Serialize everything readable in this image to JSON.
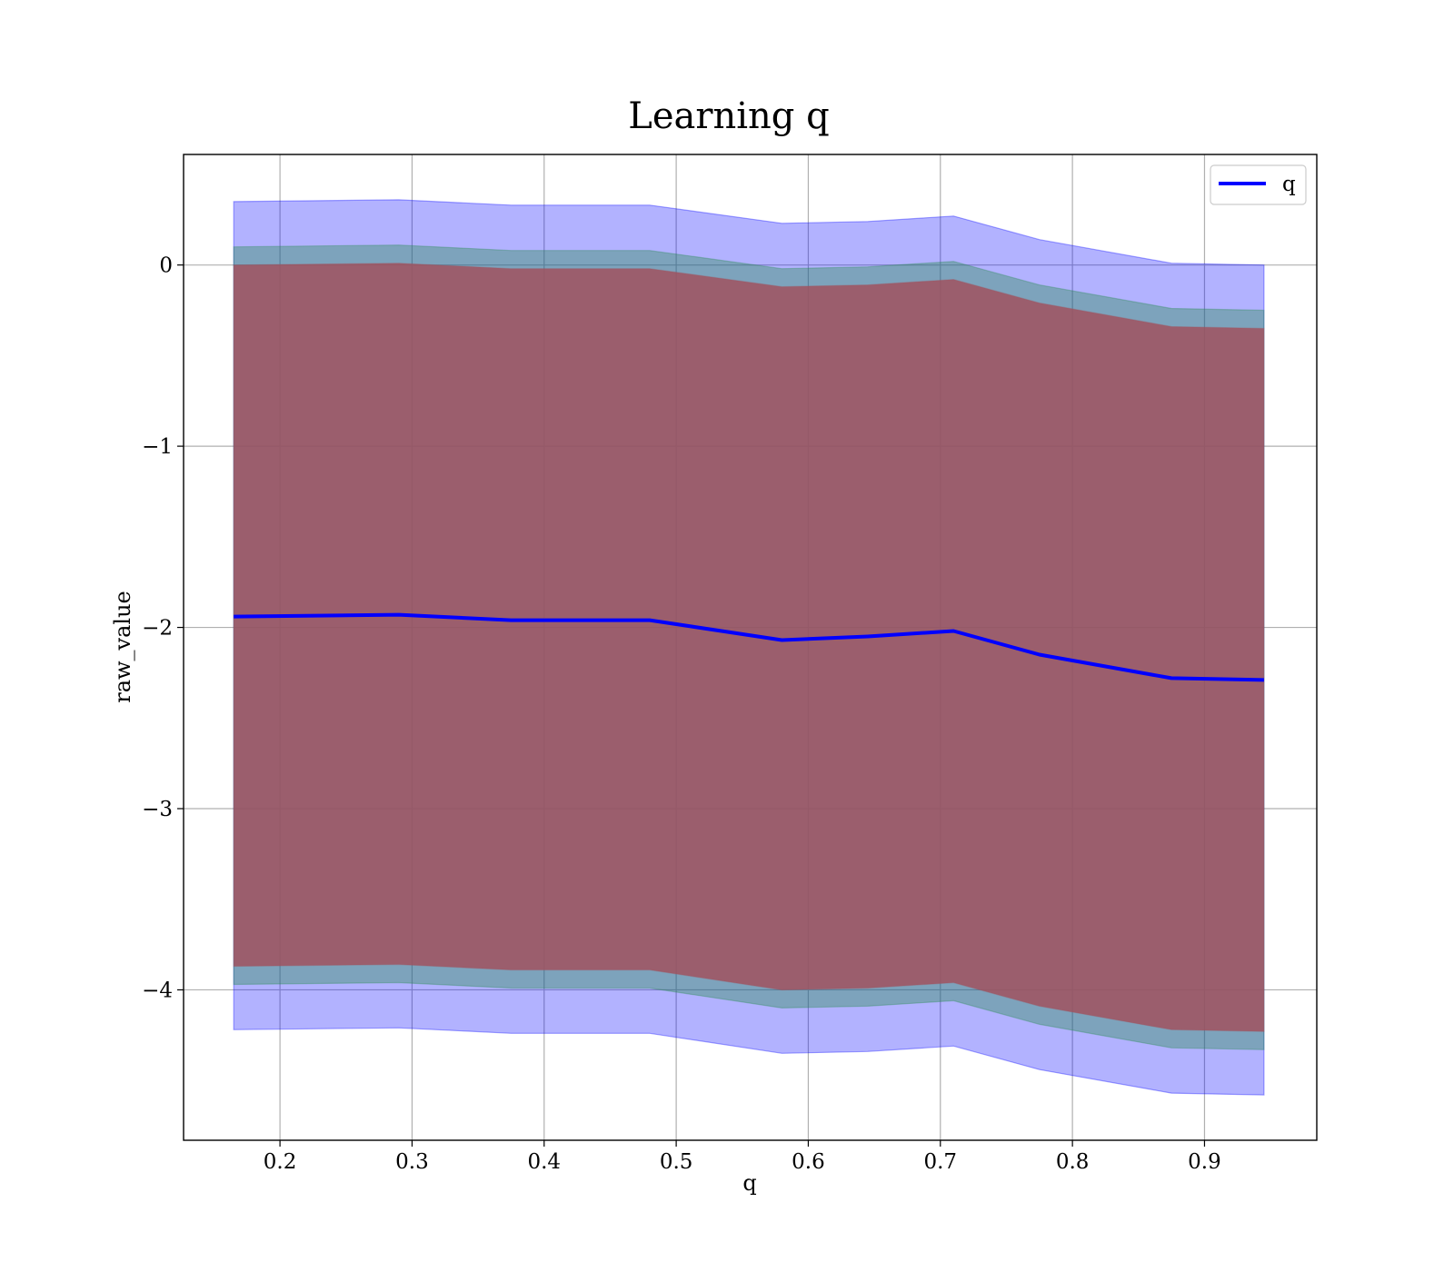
{
  "chart_data": {
    "type": "line",
    "title": "Learning q",
    "xlabel": "q",
    "ylabel": "raw_value",
    "xlim": [
      0.127,
      0.985
    ],
    "ylim": [
      -4.83,
      0.61
    ],
    "xticks": [
      0.2,
      0.3,
      0.4,
      0.5,
      0.6,
      0.7,
      0.8,
      0.9
    ],
    "xtick_labels": [
      "0.2",
      "0.3",
      "0.4",
      "0.5",
      "0.6",
      "0.7",
      "0.8",
      "0.9"
    ],
    "yticks": [
      0,
      -1,
      -2,
      -3,
      -4
    ],
    "ytick_labels": [
      "0",
      "−1",
      "−2",
      "−3",
      "−4"
    ],
    "grid": true,
    "legend_position": "top-right",
    "x": [
      0.165,
      0.29,
      0.375,
      0.48,
      0.58,
      0.645,
      0.71,
      0.775,
      0.875,
      0.945
    ],
    "series": [
      {
        "name": "q",
        "color": "#0000ff",
        "values": [
          -1.94,
          -1.93,
          -1.96,
          -1.96,
          -2.07,
          -2.05,
          -2.02,
          -2.15,
          -2.28,
          -2.29
        ]
      }
    ],
    "bands": [
      {
        "color": "#0000ff",
        "opacity": 0.3,
        "upper": [
          0.35,
          0.36,
          0.33,
          0.33,
          0.23,
          0.24,
          0.27,
          0.14,
          0.01,
          0.0
        ],
        "lower": [
          -4.22,
          -4.21,
          -4.24,
          -4.24,
          -4.35,
          -4.34,
          -4.31,
          -4.44,
          -4.57,
          -4.58
        ]
      },
      {
        "color": "#2e8b57",
        "opacity": 0.4,
        "upper": [
          0.1,
          0.11,
          0.08,
          0.08,
          -0.02,
          -0.01,
          0.02,
          -0.11,
          -0.24,
          -0.25
        ],
        "lower": [
          -3.97,
          -3.96,
          -3.99,
          -3.99,
          -4.1,
          -4.09,
          -4.06,
          -4.19,
          -4.32,
          -4.33
        ]
      },
      {
        "color": "#a0525f",
        "opacity": 0.85,
        "upper": [
          0.0,
          0.01,
          -0.02,
          -0.02,
          -0.12,
          -0.11,
          -0.08,
          -0.21,
          -0.34,
          -0.35
        ],
        "lower": [
          -3.87,
          -3.86,
          -3.89,
          -3.89,
          -4.0,
          -3.99,
          -3.96,
          -4.09,
          -4.22,
          -4.23
        ]
      }
    ]
  }
}
